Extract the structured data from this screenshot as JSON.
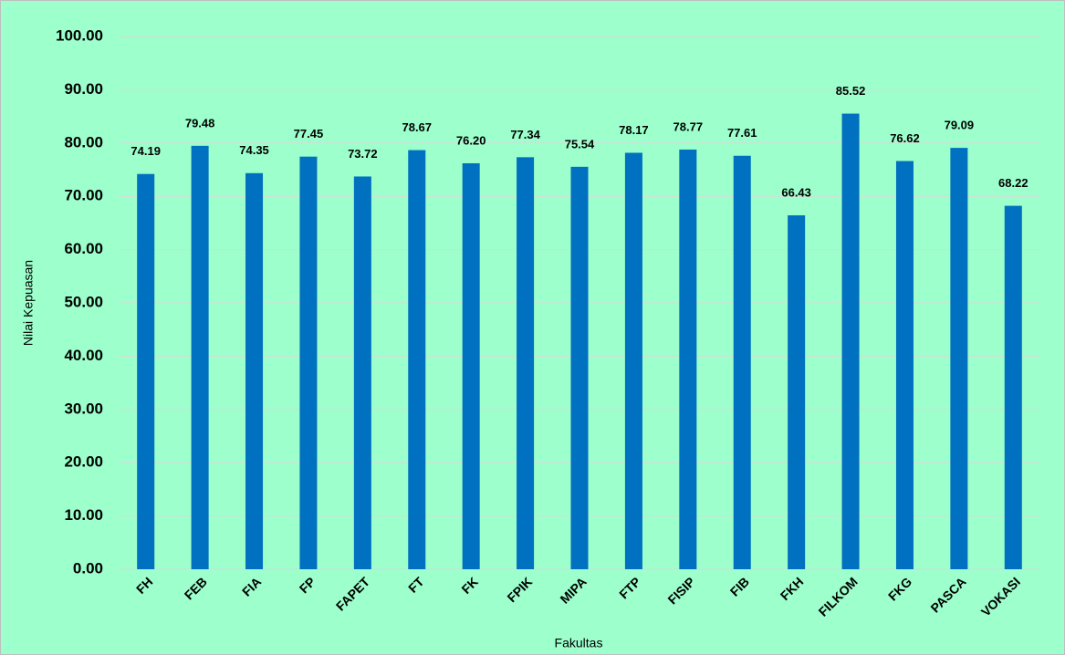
{
  "chart_data": {
    "type": "bar",
    "x_label": "Fakultas",
    "y_label": "Nilai Kepuasan",
    "categories": [
      "FH",
      "FEB",
      "FIA",
      "FP",
      "FAPET",
      "FT",
      "FK",
      "FPIK",
      "MIPA",
      "FTP",
      "FISIP",
      "FIB",
      "FKH",
      "FILKOM",
      "FKG",
      "PASCA",
      "VOKASI"
    ],
    "values": [
      74.19,
      79.48,
      74.35,
      77.45,
      73.72,
      78.67,
      76.2,
      77.34,
      75.54,
      78.17,
      78.77,
      77.61,
      66.43,
      85.52,
      76.62,
      79.09,
      68.22
    ],
    "value_labels": [
      "74.19",
      "79.48",
      "74.35",
      "77.45",
      "73.72",
      "78.67",
      "76.20",
      "77.34",
      "75.54",
      "78.17",
      "78.77",
      "77.61",
      "66.43",
      "85.52",
      "76.62",
      "79.09",
      "68.22"
    ],
    "color": "#0070c0",
    "ylim": [
      0,
      100
    ],
    "yticks": [
      {
        "value": 0,
        "label": "0.00"
      },
      {
        "value": 10,
        "label": "10.00"
      },
      {
        "value": 20,
        "label": "20.00"
      },
      {
        "value": 30,
        "label": "30.00"
      },
      {
        "value": 40,
        "label": "40.00"
      },
      {
        "value": 50,
        "label": "50.00"
      },
      {
        "value": 60,
        "label": "60.00"
      },
      {
        "value": 70,
        "label": "70.00"
      },
      {
        "value": 80,
        "label": "80.00"
      },
      {
        "value": 90,
        "label": "90.00"
      },
      {
        "value": 100,
        "label": "100.00"
      }
    ],
    "grid": true
  }
}
